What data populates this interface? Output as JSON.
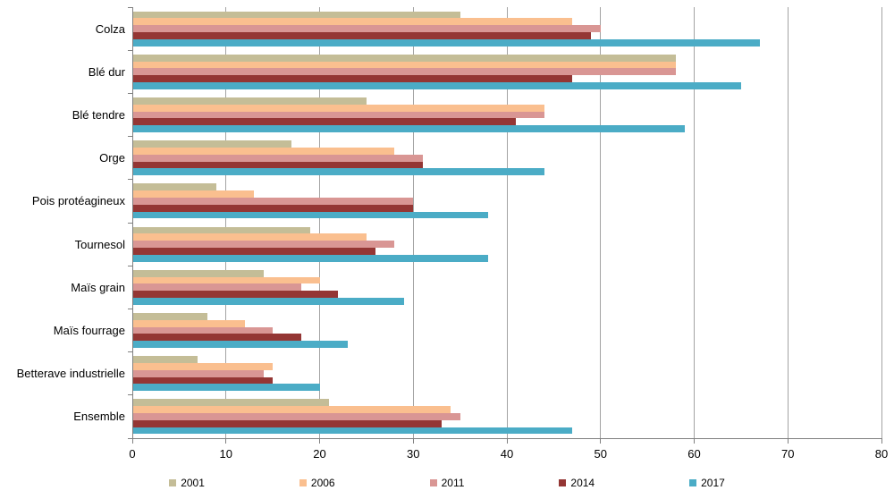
{
  "chart_data": {
    "type": "bar",
    "orientation": "horizontal",
    "title": "",
    "xlabel": "",
    "ylabel": "",
    "categories": [
      "Colza",
      "Blé dur",
      "Blé tendre",
      "Orge",
      "Pois protéagineux",
      "Tournesol",
      "Maïs grain",
      "Maïs fourrage",
      "Betterave industrielle",
      "Ensemble"
    ],
    "series": [
      {
        "name": "2001",
        "color": "#C4BD97",
        "values": [
          35,
          58,
          25,
          17,
          9,
          19,
          14,
          8,
          7,
          21
        ]
      },
      {
        "name": "2006",
        "color": "#FABF8F",
        "values": [
          47,
          58,
          44,
          28,
          13,
          25,
          20,
          12,
          15,
          34
        ]
      },
      {
        "name": "2011",
        "color": "#D99694",
        "values": [
          50,
          58,
          44,
          31,
          30,
          28,
          18,
          15,
          14,
          35
        ]
      },
      {
        "name": "2014",
        "color": "#943634",
        "values": [
          49,
          47,
          41,
          31,
          30,
          26,
          22,
          18,
          15,
          33
        ]
      },
      {
        "name": "2017",
        "color": "#4BACC6",
        "values": [
          67,
          65,
          59,
          44,
          38,
          38,
          29,
          23,
          20,
          47
        ]
      }
    ],
    "xlim": [
      0,
      80
    ],
    "x_ticks": [
      0,
      10,
      20,
      30,
      40,
      50,
      60,
      70,
      80
    ],
    "grid": true,
    "legend_position": "bottom"
  },
  "colors": {
    "gridline": "#A3A3A3",
    "axis": "#808080",
    "text": "#000000",
    "background": "#FFFFFF"
  }
}
